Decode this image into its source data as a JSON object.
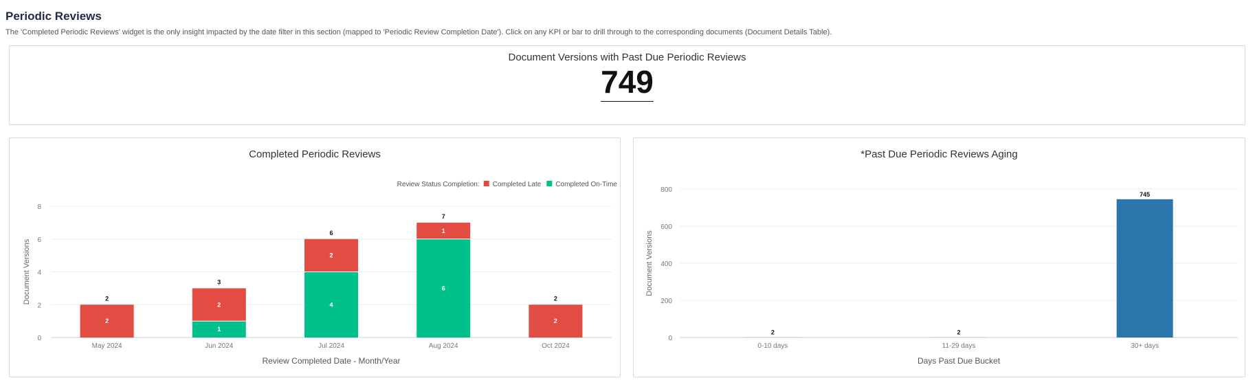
{
  "section": {
    "title": "Periodic Reviews",
    "description": "The 'Completed Periodic Reviews' widget is the only insight impacted by the date filter in this section (mapped to 'Periodic Review Completion Date'). Click on any KPI or bar to drill through to the corresponding documents (Document Details Table)."
  },
  "kpi": {
    "title": "Document Versions with Past Due Periodic Reviews",
    "value": "749"
  },
  "colors": {
    "completed_late": "#e34c42",
    "completed_on_time": "#00c08b",
    "aging_bar": "#2a76ad",
    "aging_small_bar": "#bcdff5",
    "grid": "#ececec",
    "axis_text": "#777777"
  },
  "chart_data": [
    {
      "type": "bar",
      "stacked": true,
      "title": "Completed Periodic Reviews",
      "xlabel": "Review Completed Date - Month/Year",
      "ylabel": "Document Versions",
      "legend_title": "Review Status Completion:",
      "legend_position": "top-right",
      "categories": [
        "May 2024",
        "Jun 2024",
        "Jul 2024",
        "Aug 2024",
        "Oct 2024"
      ],
      "series": [
        {
          "name": "Completed Late",
          "values": [
            2,
            2,
            2,
            1,
            2
          ]
        },
        {
          "name": "Completed On-Time",
          "values": [
            0,
            1,
            4,
            6,
            0
          ]
        }
      ],
      "totals": [
        2,
        3,
        6,
        7,
        2
      ],
      "ylim": [
        0,
        8
      ],
      "yticks": [
        0,
        2,
        4,
        6,
        8
      ],
      "grid": true
    },
    {
      "type": "bar",
      "title": "*Past Due Periodic Reviews Aging",
      "xlabel": "Days Past Due Bucket",
      "ylabel": "Document Versions",
      "categories": [
        "0-10 days",
        "11-29 days",
        "30+ days"
      ],
      "values": [
        2,
        2,
        745
      ],
      "ylim": [
        0,
        800
      ],
      "yticks": [
        0,
        200,
        400,
        600,
        800
      ],
      "grid": true
    }
  ]
}
